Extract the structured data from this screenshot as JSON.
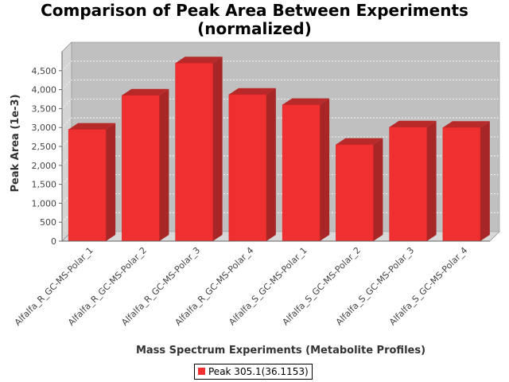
{
  "chart_data": {
    "type": "bar",
    "title_lines": [
      "Comparison of Peak Area Between Experiments",
      "(normalized)"
    ],
    "xlabel": "Mass Spectrum Experiments (Metabolite Profiles)",
    "ylabel": "Peak Area (1e-3)",
    "ylim": [
      0,
      5000
    ],
    "yticks": [
      0,
      500,
      1000,
      1500,
      2000,
      2500,
      3000,
      3500,
      4000,
      4500
    ],
    "ytick_labels": [
      "0",
      "500",
      "1,000",
      "1,500",
      "2,000",
      "2,500",
      "3,000",
      "3,500",
      "4,000",
      "4,500"
    ],
    "categories": [
      "Alfalfa_R_GC-MS-Polar_1",
      "Alfalfa_R_GC-MS-Polar_2",
      "Alfalfa_R_GC-MS-Polar_3",
      "Alfalfa_R_GC-MS-Polar_4",
      "Alfalfa_S_GC-MS-Polar_1",
      "Alfalfa_S_GC-MS-Polar_2",
      "Alfalfa_S_GC-MS-Polar_3",
      "Alfalfa_S_GC-MS-Polar_4"
    ],
    "series": [
      {
        "name": "Peak 305.1(36.1153)",
        "color": "#f03030",
        "values": [
          2950,
          3850,
          4700,
          3870,
          3600,
          2550,
          3010,
          3000
        ]
      }
    ],
    "grid": true,
    "legend_position": "bottom-center",
    "plot_background": "#c0c0c0"
  }
}
